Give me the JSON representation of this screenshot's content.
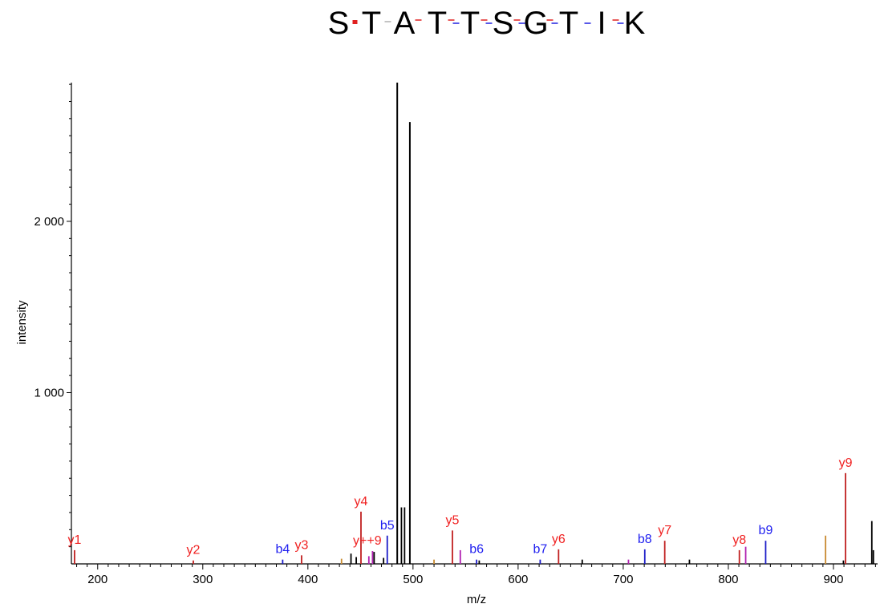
{
  "chart_data": {
    "type": "bar",
    "title": "",
    "xlabel": "m/z",
    "ylabel": "intensity",
    "xlim": [
      175,
      942
    ],
    "ylim": [
      0,
      2810
    ],
    "x_ticks": [
      200,
      300,
      400,
      500,
      600,
      700,
      800,
      900
    ],
    "x_tick_labels": [
      "200",
      "300",
      "400",
      "500",
      "600",
      "700",
      "800",
      "900"
    ],
    "y_ticks": [
      1000,
      2000
    ],
    "y_tick_labels": [
      "1 000",
      "2 000"
    ],
    "grid": false,
    "sequence": {
      "residues": [
        "S",
        "T",
        "A",
        "T",
        "T",
        "S",
        "G",
        "T",
        "I",
        "K"
      ],
      "residue_color": "#000000",
      "cleavage_marks": [
        {
          "after": 1,
          "y": true,
          "b": false,
          "strong": true
        },
        {
          "after": 2,
          "y": false,
          "b": false
        },
        {
          "after": 3,
          "y": true,
          "b": false
        },
        {
          "after": 4,
          "y": true,
          "b": true
        },
        {
          "after": 5,
          "y": true,
          "b": true
        },
        {
          "after": 6,
          "y": true,
          "b": true
        },
        {
          "after": 7,
          "y": true,
          "b": true
        },
        {
          "after": 8,
          "y": false,
          "b": true
        },
        {
          "after": 9,
          "y": true,
          "b": true
        }
      ],
      "y_mark_color": "#e02020",
      "b_mark_color": "#2020e0"
    },
    "series_colors": {
      "y": "#c02020",
      "b": "#1c1cc8",
      "doubly": "#b020b0",
      "neutral_loss": "#c88a30",
      "unassigned": "#000000",
      "y_label": "#f02020",
      "b_label": "#2020f0"
    },
    "peaks": [
      {
        "mz": 178.0,
        "intensity": 80,
        "type": "y"
      },
      {
        "mz": 291.0,
        "intensity": 20,
        "type": "y"
      },
      {
        "mz": 376.0,
        "intensity": 25,
        "type": "b"
      },
      {
        "mz": 394.0,
        "intensity": 50,
        "type": "y"
      },
      {
        "mz": 432.0,
        "intensity": 30,
        "type": "neutral_loss"
      },
      {
        "mz": 441.0,
        "intensity": 60,
        "type": "unassigned"
      },
      {
        "mz": 446.0,
        "intensity": 40,
        "type": "unassigned"
      },
      {
        "mz": 450.5,
        "intensity": 305,
        "type": "y"
      },
      {
        "mz": 458.0,
        "intensity": 45,
        "type": "doubly"
      },
      {
        "mz": 461.5,
        "intensity": 75,
        "type": "doubly"
      },
      {
        "mz": 463.0,
        "intensity": 70,
        "type": "unassigned"
      },
      {
        "mz": 472.0,
        "intensity": 35,
        "type": "unassigned"
      },
      {
        "mz": 475.5,
        "intensity": 165,
        "type": "b"
      },
      {
        "mz": 485.0,
        "intensity": 2810,
        "type": "unassigned"
      },
      {
        "mz": 489.0,
        "intensity": 330,
        "type": "unassigned"
      },
      {
        "mz": 492.0,
        "intensity": 330,
        "type": "unassigned"
      },
      {
        "mz": 497.0,
        "intensity": 2580,
        "type": "unassigned"
      },
      {
        "mz": 520.0,
        "intensity": 25,
        "type": "neutral_loss"
      },
      {
        "mz": 537.5,
        "intensity": 195,
        "type": "y"
      },
      {
        "mz": 545.0,
        "intensity": 80,
        "type": "doubly"
      },
      {
        "mz": 560.5,
        "intensity": 25,
        "type": "b"
      },
      {
        "mz": 563.0,
        "intensity": 20,
        "type": "unassigned"
      },
      {
        "mz": 621.0,
        "intensity": 25,
        "type": "b"
      },
      {
        "mz": 638.5,
        "intensity": 85,
        "type": "y"
      },
      {
        "mz": 661.0,
        "intensity": 25,
        "type": "unassigned"
      },
      {
        "mz": 705.0,
        "intensity": 25,
        "type": "doubly"
      },
      {
        "mz": 720.5,
        "intensity": 85,
        "type": "b"
      },
      {
        "mz": 739.5,
        "intensity": 135,
        "type": "y"
      },
      {
        "mz": 763.0,
        "intensity": 25,
        "type": "unassigned"
      },
      {
        "mz": 810.5,
        "intensity": 80,
        "type": "y"
      },
      {
        "mz": 816.5,
        "intensity": 100,
        "type": "doubly"
      },
      {
        "mz": 835.5,
        "intensity": 135,
        "type": "b"
      },
      {
        "mz": 892.5,
        "intensity": 165,
        "type": "neutral_loss"
      },
      {
        "mz": 909.5,
        "intensity": 20,
        "type": "unassigned"
      },
      {
        "mz": 911.5,
        "intensity": 530,
        "type": "y"
      },
      {
        "mz": 936.5,
        "intensity": 250,
        "type": "unassigned"
      },
      {
        "mz": 938.0,
        "intensity": 80,
        "type": "unassigned"
      }
    ],
    "annotations": [
      {
        "text": "y1",
        "mz": 178.0,
        "intensity": 80,
        "type": "y"
      },
      {
        "text": "y2",
        "mz": 291.0,
        "intensity": 20,
        "type": "y"
      },
      {
        "text": "b4",
        "mz": 376.0,
        "intensity": 25,
        "type": "b"
      },
      {
        "text": "y3",
        "mz": 394.0,
        "intensity": 50,
        "type": "y"
      },
      {
        "text": "y4",
        "mz": 450.5,
        "intensity": 305,
        "type": "y"
      },
      {
        "text": "y++9",
        "mz": 456.5,
        "intensity": 75,
        "type": "y"
      },
      {
        "text": "b5",
        "mz": 475.5,
        "intensity": 165,
        "type": "b"
      },
      {
        "text": "y5",
        "mz": 537.5,
        "intensity": 195,
        "type": "y"
      },
      {
        "text": "b6",
        "mz": 560.5,
        "intensity": 25,
        "type": "b"
      },
      {
        "text": "b7",
        "mz": 621.0,
        "intensity": 25,
        "type": "b"
      },
      {
        "text": "y6",
        "mz": 638.5,
        "intensity": 85,
        "type": "y"
      },
      {
        "text": "b8",
        "mz": 720.5,
        "intensity": 85,
        "type": "b"
      },
      {
        "text": "y7",
        "mz": 739.5,
        "intensity": 135,
        "type": "y"
      },
      {
        "text": "y8",
        "mz": 810.5,
        "intensity": 80,
        "type": "y"
      },
      {
        "text": "b9",
        "mz": 835.5,
        "intensity": 135,
        "type": "b"
      },
      {
        "text": "y9",
        "mz": 911.5,
        "intensity": 530,
        "type": "y"
      }
    ]
  }
}
